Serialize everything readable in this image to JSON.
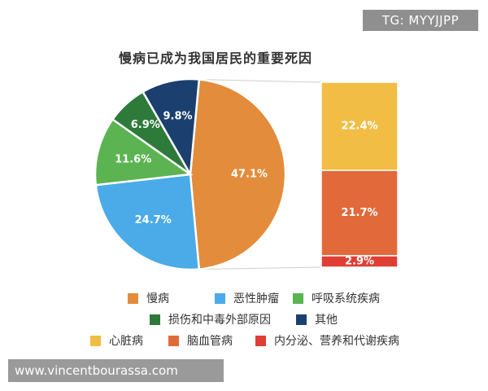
{
  "watermarks": {
    "top_right": "TG: MYYJJPP",
    "bottom_left": "www.vincentbourassa.com"
  },
  "chart_data": {
    "type": "pie",
    "title": "慢病已成为我国居民的重要死因",
    "pie": {
      "slices": [
        {
          "name": "慢病",
          "value": 47.1,
          "label": "47.1%",
          "color": "#e38c3b"
        },
        {
          "name": "恶性肿瘤",
          "value": 24.7,
          "label": "24.7%",
          "color": "#4aabe8"
        },
        {
          "name": "呼吸系统疾病",
          "value": 11.6,
          "label": "11.6%",
          "color": "#5bb451"
        },
        {
          "name": "损伤和中毒外部原因",
          "value": 6.9,
          "label": "6.9%",
          "color": "#2e7a3b"
        },
        {
          "name": "其他",
          "value": 9.8,
          "label": "9.8%",
          "color": "#1b406f"
        }
      ]
    },
    "breakdown": {
      "parent": "慢病",
      "segments": [
        {
          "name": "心脏病",
          "value": 22.4,
          "label": "22.4%",
          "color": "#f2bd45"
        },
        {
          "name": "脑血管病",
          "value": 21.7,
          "label": "21.7%",
          "color": "#e2693a"
        },
        {
          "name": "内分泌、营养和代谢疾病",
          "value": 2.9,
          "label": "2.9%",
          "color": "#e03e35"
        }
      ]
    },
    "legend": {
      "placement": "bottom",
      "rows": [
        [
          "慢病",
          "恶性肿瘤",
          "呼吸系统疾病"
        ],
        [
          "损伤和中毒外部原因",
          "其他"
        ],
        [
          "心脏病",
          "脑血管病",
          "内分泌、营养和代谢疾病"
        ]
      ]
    }
  }
}
